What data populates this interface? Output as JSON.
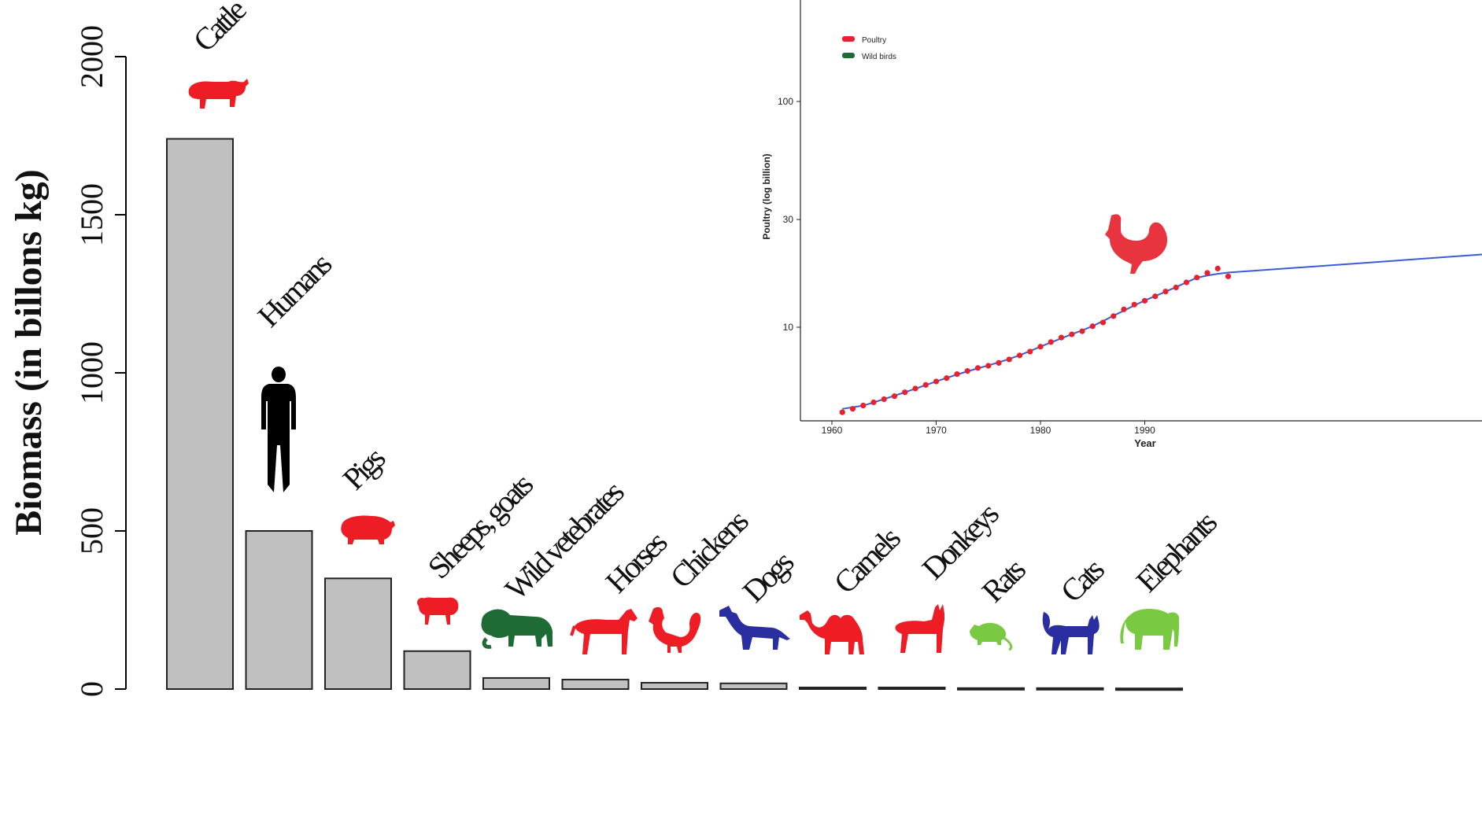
{
  "chart_data": [
    {
      "type": "bar",
      "title": "",
      "xlabel": "",
      "ylabel": "Biomass (in billons  kg)",
      "ylim": [
        0,
        2000
      ],
      "yticks": [
        "0",
        "500",
        "1000",
        "1500",
        "2000"
      ],
      "categories": [
        "Cattle",
        "Humans",
        "Pigs",
        "Sheeps, goats",
        "Wild vetebrates",
        "Horses",
        "Chickens",
        "Dogs",
        "Camels",
        "Donkeys",
        "Rats",
        "Cats",
        "Elephants"
      ],
      "values": [
        1740,
        500,
        350,
        120,
        35,
        30,
        20,
        18,
        5,
        5,
        3,
        3,
        2
      ],
      "icons": [
        {
          "name": "cattle-icon",
          "color": "#ee1c25"
        },
        {
          "name": "human-icon",
          "color": "#000000"
        },
        {
          "name": "pig-icon",
          "color": "#ee1c25"
        },
        {
          "name": "sheep-icon",
          "color": "#ee1c25"
        },
        {
          "name": "monkey-icon",
          "color": "#1e6b36"
        },
        {
          "name": "horse-icon",
          "color": "#ee1c25"
        },
        {
          "name": "rooster-icon",
          "color": "#ee1c25"
        },
        {
          "name": "dog-icon",
          "color": "#2b2ea0"
        },
        {
          "name": "camel-icon",
          "color": "#ee1c25"
        },
        {
          "name": "donkey-icon",
          "color": "#ee1c25"
        },
        {
          "name": "rat-icon",
          "color": "#7ac943"
        },
        {
          "name": "cat-icon",
          "color": "#2b2ea0"
        },
        {
          "name": "elephant-icon",
          "color": "#7ac943"
        }
      ]
    },
    {
      "type": "line",
      "title": "",
      "xlabel": "Year",
      "ylabel": "Poultry (log billion)",
      "yscale": "log",
      "xticks": [
        "1960",
        "1970",
        "1980",
        "1990"
      ],
      "yticks": [
        "10",
        "30",
        "100"
      ],
      "legend": [
        "Poultry",
        "Wild birds"
      ],
      "legend_colors": [
        "#e8212e",
        "#1e6b36"
      ],
      "trend_color": "#3b5bdb",
      "series": [
        {
          "name": "Poultry",
          "x": [
            1961,
            1962,
            1963,
            1964,
            1965,
            1966,
            1967,
            1968,
            1969,
            1970,
            1971,
            1972,
            1973,
            1974,
            1975,
            1976,
            1977,
            1978,
            1979,
            1980,
            1981,
            1982,
            1983,
            1984,
            1985,
            1986,
            1987,
            1988,
            1989,
            1990,
            1991,
            1992,
            1993,
            1994,
            1995,
            1996,
            1997,
            1998
          ],
          "y": [
            4.2,
            4.35,
            4.5,
            4.65,
            4.8,
            4.95,
            5.15,
            5.35,
            5.55,
            5.75,
            5.95,
            6.2,
            6.4,
            6.6,
            6.75,
            6.95,
            7.2,
            7.5,
            7.8,
            8.2,
            8.6,
            9.0,
            9.3,
            9.6,
            10.1,
            10.5,
            11.2,
            12.0,
            12.6,
            13.1,
            13.7,
            14.4,
            15.0,
            15.8,
            16.6,
            17.4,
            18.2,
            16.8
          ]
        }
      ]
    }
  ]
}
